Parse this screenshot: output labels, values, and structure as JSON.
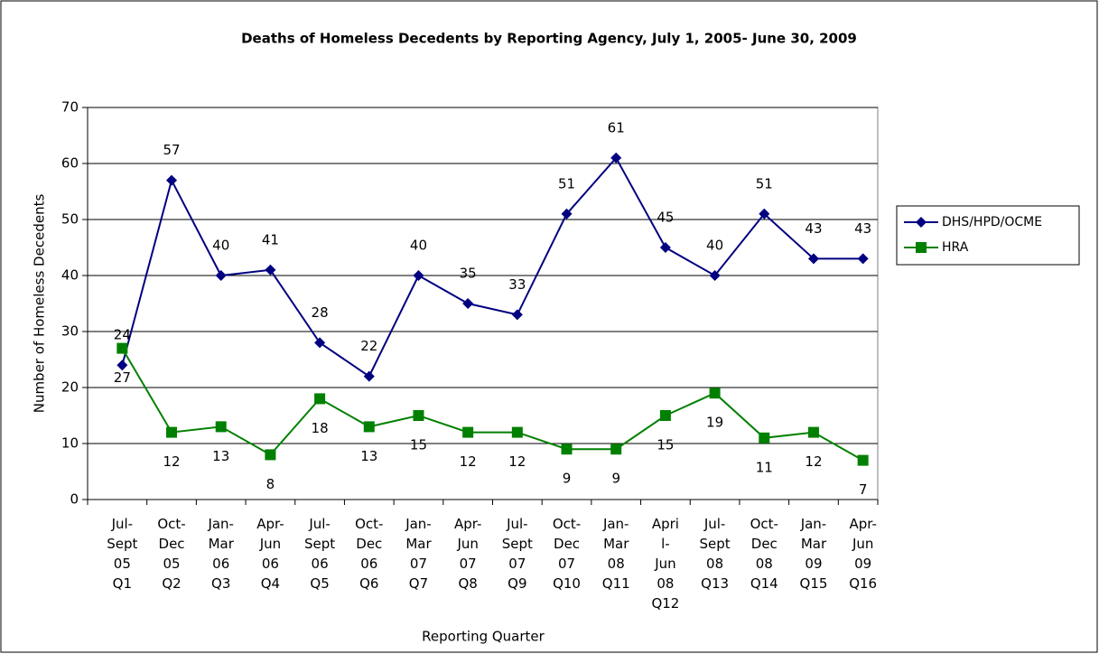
{
  "chart_data": {
    "type": "line",
    "title": "Deaths of Homeless Decedents by Reporting Agency, July 1, 2005- June 30, 2009",
    "xlabel": "Reporting Quarter",
    "ylabel": "Number of Homeless Decedents",
    "categories": [
      "Jul-\nSept\n05\nQ1",
      "Oct-\nDec\n05\nQ2",
      "Jan-\nMar\n06\nQ3",
      "Apr-\nJun\n06\nQ4",
      "Jul-\nSept\n06\nQ5",
      "Oct-\nDec\n06\nQ6",
      "Jan-\nMar\n07\nQ7",
      "Apr-\nJun\n07\nQ8",
      "Jul-\nSept\n07\nQ9",
      "Oct-\nDec\n07\nQ10",
      "Jan-\nMar\n08\nQ11",
      "Apri\nl-\nJun\n08\nQ12",
      "Jul-\nSept\n08\nQ13",
      "Oct-\nDec\n08\nQ14",
      "Jan-\nMar\n09\nQ15",
      "Apr-\nJun\n09\nQ16"
    ],
    "series": [
      {
        "name": "DHS/HPD/OCME",
        "color": "#000080",
        "marker": "diamond",
        "values": [
          24,
          57,
          40,
          41,
          28,
          22,
          40,
          35,
          33,
          51,
          61,
          45,
          40,
          51,
          43,
          43
        ]
      },
      {
        "name": "HRA",
        "color": "#008000",
        "marker": "square",
        "values": [
          27,
          12,
          13,
          8,
          18,
          13,
          15,
          12,
          12,
          9,
          9,
          15,
          19,
          11,
          12,
          7
        ]
      }
    ],
    "ylim": [
      0,
      70
    ],
    "yticks": [
      0,
      10,
      20,
      30,
      40,
      50,
      60,
      70
    ],
    "grid": true,
    "legend": "right"
  }
}
